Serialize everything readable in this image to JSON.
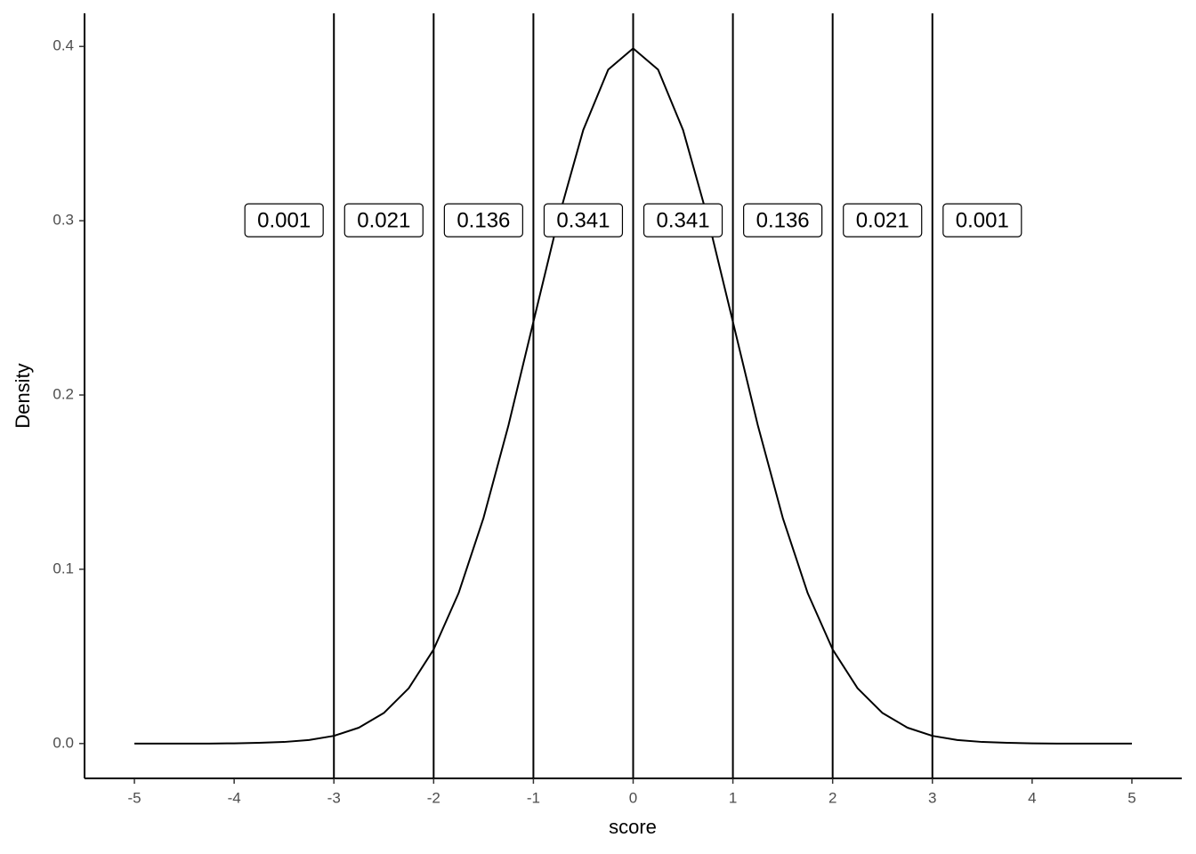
{
  "chart_data": {
    "type": "line",
    "xlabel": "score",
    "ylabel": "Density",
    "x": [
      -5,
      -4.75,
      -4.5,
      -4.25,
      -4,
      -3.75,
      -3.5,
      -3.25,
      -3,
      -2.75,
      -2.5,
      -2.25,
      -2,
      -1.75,
      -1.5,
      -1.25,
      -1,
      -0.75,
      -0.5,
      -0.25,
      0,
      0.25,
      0.5,
      0.75,
      1,
      1.25,
      1.5,
      1.75,
      2,
      2.25,
      2.5,
      2.75,
      3,
      3.25,
      3.5,
      3.75,
      4,
      4.25,
      4.5,
      4.75,
      5
    ],
    "values": [
      0,
      0,
      0,
      0,
      0.0001,
      0.0004,
      0.0009,
      0.002,
      0.0044,
      0.0091,
      0.0175,
      0.0317,
      0.054,
      0.0863,
      0.1295,
      0.1826,
      0.242,
      0.3011,
      0.3521,
      0.3867,
      0.3989,
      0.3867,
      0.3521,
      0.3011,
      0.242,
      0.1826,
      0.1295,
      0.0863,
      0.054,
      0.0317,
      0.0175,
      0.0091,
      0.0044,
      0.002,
      0.0009,
      0.0004,
      0.0001,
      0,
      0,
      0,
      0
    ],
    "color": "#000000",
    "vlines": [
      -3,
      -2,
      -1,
      0,
      1,
      2,
      3
    ],
    "annotations": [
      {
        "x": -3.5,
        "y": 0.3,
        "text": "0.001"
      },
      {
        "x": -2.5,
        "y": 0.3,
        "text": "0.021"
      },
      {
        "x": -1.5,
        "y": 0.3,
        "text": "0.136"
      },
      {
        "x": -0.5,
        "y": 0.3,
        "text": "0.341"
      },
      {
        "x": 0.5,
        "y": 0.3,
        "text": "0.341"
      },
      {
        "x": 1.5,
        "y": 0.3,
        "text": "0.136"
      },
      {
        "x": 2.5,
        "y": 0.3,
        "text": "0.021"
      },
      {
        "x": 3.5,
        "y": 0.3,
        "text": "0.001"
      }
    ],
    "xlim": [
      -5.5,
      5.5
    ],
    "xticks": [
      -5,
      -4,
      -3,
      -2,
      -1,
      0,
      1,
      2,
      3,
      4,
      5
    ],
    "ylim": [
      -0.02,
      0.419
    ],
    "yticks": [
      {
        "value": 0,
        "label": "0.0"
      },
      0.1,
      0.2,
      0.3,
      0.4
    ],
    "grid": false
  }
}
